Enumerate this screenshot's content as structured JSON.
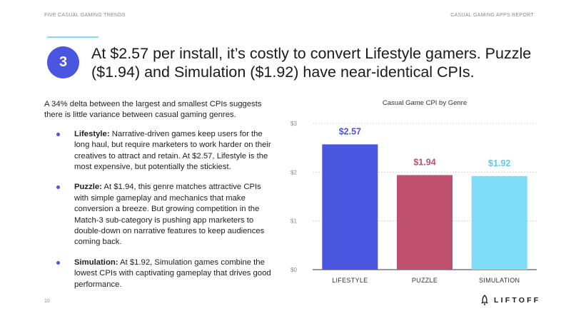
{
  "header": {
    "left": "FIVE CASUAL GAMING TRENDS",
    "right": "CASUAL GAMING APPS REPORT"
  },
  "badge": "3",
  "headline": "At $2.57 per install, it’s costly to convert Lifestyle gamers. Puzzle ($1.94) and Simulation ($1.92) have near-identical CPIs.",
  "body": {
    "intro": "A 34% delta between the largest and smallest CPIs suggests there is little variance between casual gaming genres.",
    "bullets": [
      {
        "label": "Lifestyle:",
        "text": " Narrative-driven games keep users for the long haul, but require marketers to work harder on their creatives to attract and retain. At $2.57, Lifestyle is the most expensive, but potentially the stickiest."
      },
      {
        "label": "Puzzle:",
        "text": " At $1.94, this genre matches attractive CPIs with simple gameplay and mechanics that make conversion a breeze. But growing competition in the Match-3 sub-category is pushing app marketers to double-down on narrative features to keep audiences coming back."
      },
      {
        "label": "Simulation:",
        "text": " At $1.92, Simulation games combine the lowest CPIs with captivating gameplay that drives good performance."
      }
    ]
  },
  "page_number": "10",
  "logo": {
    "text": "LIFTOFF",
    "icon": "rocket-icon"
  },
  "chart_data": {
    "type": "bar",
    "title": "Casual Game CPI by Genre",
    "categories": [
      "LIFESTYLE",
      "PUZZLE",
      "SIMULATION"
    ],
    "values": [
      2.57,
      1.94,
      1.92
    ],
    "value_labels": [
      "$2.57",
      "$1.94",
      "$1.92"
    ],
    "colors": [
      "#4a55e0",
      "#c05070",
      "#7fdcf6"
    ],
    "label_colors": [
      "#4a55e0",
      "#c05070",
      "#5fc8e8"
    ],
    "yticks": [
      0,
      1,
      2,
      3
    ],
    "ytick_labels": [
      "$0",
      "$1",
      "$2",
      "$3"
    ],
    "ylim": [
      0,
      3
    ],
    "grid": true,
    "xlabel": "",
    "ylabel": ""
  }
}
